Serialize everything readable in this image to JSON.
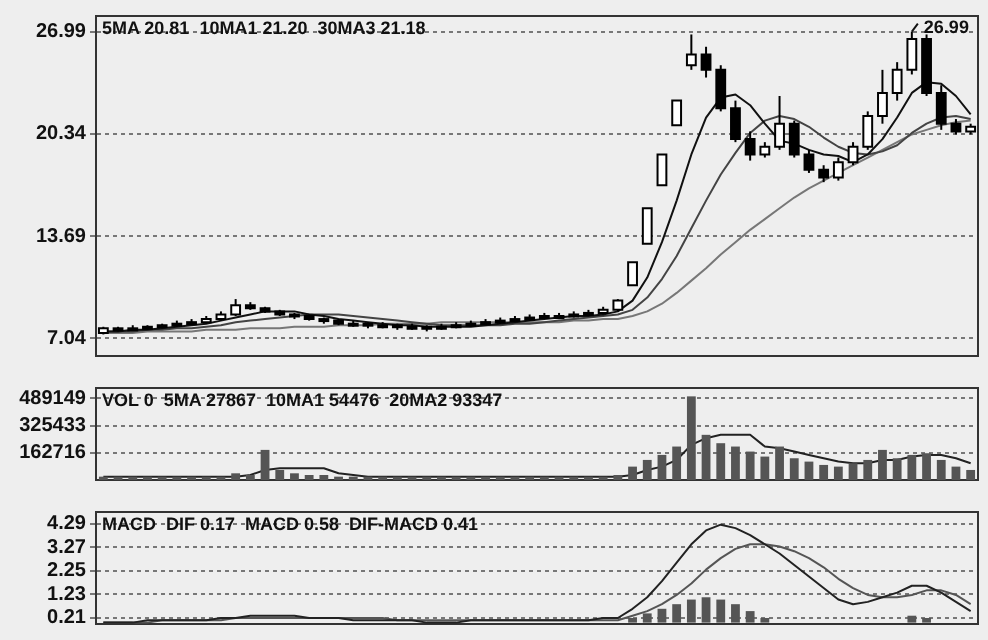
{
  "chart_data": [
    {
      "type": "candlestick",
      "categories": [
        null,
        null,
        null,
        null,
        null,
        null,
        null,
        null,
        null,
        null,
        null,
        null,
        null,
        null,
        null,
        null,
        null,
        null,
        null,
        null,
        null,
        null,
        null,
        null,
        null,
        null,
        null,
        null,
        null,
        null,
        null,
        null,
        null,
        null,
        null,
        null,
        null,
        null,
        null,
        null,
        null,
        null,
        null,
        null,
        null,
        null,
        null,
        null,
        null,
        null,
        null,
        null,
        null,
        null,
        null,
        null,
        null,
        null,
        null,
        null
      ],
      "ohlc": [
        [
          7.4,
          7.8,
          7.3,
          7.7
        ],
        [
          7.6,
          7.8,
          7.5,
          7.7
        ],
        [
          7.7,
          7.9,
          7.6,
          7.7
        ],
        [
          7.7,
          7.9,
          7.6,
          7.8
        ],
        [
          7.8,
          8.0,
          7.7,
          7.9
        ],
        [
          7.9,
          8.2,
          7.8,
          8.0
        ],
        [
          8.0,
          8.3,
          7.9,
          8.1
        ],
        [
          8.1,
          8.5,
          8.0,
          8.3
        ],
        [
          8.3,
          8.8,
          8.2,
          8.6
        ],
        [
          8.6,
          9.6,
          8.5,
          9.2
        ],
        [
          9.2,
          9.4,
          8.9,
          9.0
        ],
        [
          9.0,
          9.1,
          8.7,
          8.8
        ],
        [
          8.8,
          8.9,
          8.5,
          8.6
        ],
        [
          8.6,
          8.7,
          8.3,
          8.5
        ],
        [
          8.5,
          8.6,
          8.2,
          8.3
        ],
        [
          8.3,
          8.4,
          8.0,
          8.2
        ],
        [
          8.2,
          8.3,
          7.9,
          8.0
        ],
        [
          8.0,
          8.2,
          7.8,
          8.0
        ],
        [
          8.0,
          8.1,
          7.7,
          7.9
        ],
        [
          7.9,
          8.1,
          7.7,
          7.9
        ],
        [
          7.9,
          8.0,
          7.6,
          7.8
        ],
        [
          7.8,
          8.0,
          7.6,
          7.8
        ],
        [
          7.8,
          7.9,
          7.5,
          7.7
        ],
        [
          7.7,
          8.0,
          7.6,
          7.8
        ],
        [
          7.8,
          8.1,
          7.7,
          7.9
        ],
        [
          7.9,
          8.2,
          7.8,
          8.0
        ],
        [
          8.0,
          8.3,
          7.9,
          8.1
        ],
        [
          8.1,
          8.4,
          8.0,
          8.2
        ],
        [
          8.2,
          8.5,
          8.1,
          8.3
        ],
        [
          8.3,
          8.6,
          8.2,
          8.4
        ],
        [
          8.4,
          8.7,
          8.3,
          8.5
        ],
        [
          8.5,
          8.7,
          8.3,
          8.5
        ],
        [
          8.5,
          8.8,
          8.4,
          8.6
        ],
        [
          8.6,
          8.9,
          8.5,
          8.7
        ],
        [
          8.7,
          9.1,
          8.6,
          8.9
        ],
        [
          8.9,
          9.6,
          8.8,
          9.5
        ],
        [
          10.5,
          12.0,
          10.5,
          12.0
        ],
        [
          13.2,
          15.5,
          13.2,
          15.5
        ],
        [
          17.0,
          19.0,
          17.0,
          19.0
        ],
        [
          20.9,
          22.5,
          20.9,
          22.5
        ],
        [
          24.8,
          26.8,
          24.5,
          25.5
        ],
        [
          25.5,
          26.0,
          24.0,
          24.5
        ],
        [
          24.5,
          24.8,
          21.8,
          22.0
        ],
        [
          22.0,
          22.5,
          19.8,
          20.0
        ],
        [
          20.0,
          20.5,
          18.6,
          19.0
        ],
        [
          19.0,
          19.8,
          18.8,
          19.5
        ],
        [
          19.5,
          22.8,
          19.3,
          21.0
        ],
        [
          21.0,
          21.2,
          18.8,
          19.0
        ],
        [
          19.0,
          19.3,
          17.8,
          18.0
        ],
        [
          18.0,
          18.3,
          17.2,
          17.5
        ],
        [
          17.5,
          18.8,
          17.3,
          18.5
        ],
        [
          18.5,
          19.8,
          18.3,
          19.5
        ],
        [
          19.5,
          21.8,
          19.3,
          21.5
        ],
        [
          21.5,
          24.5,
          21.0,
          23.0
        ],
        [
          23.0,
          25.0,
          22.5,
          24.5
        ],
        [
          24.5,
          26.99,
          24.2,
          26.5
        ],
        [
          26.5,
          26.8,
          22.8,
          23.0
        ],
        [
          23.0,
          23.5,
          20.6,
          21.0
        ],
        [
          21.0,
          21.3,
          20.3,
          20.5
        ],
        [
          20.5,
          21.0,
          20.3,
          20.8
        ]
      ],
      "series": [
        {
          "type": "line",
          "color": "#111111",
          "values": [
            7.5,
            7.5,
            7.6,
            7.6,
            7.7,
            7.8,
            7.9,
            8.0,
            8.2,
            8.4,
            8.6,
            8.8,
            8.8,
            8.8,
            8.6,
            8.5,
            8.3,
            8.2,
            8.1,
            8.0,
            7.9,
            7.9,
            7.8,
            7.8,
            7.8,
            7.8,
            7.9,
            8.0,
            8.1,
            8.2,
            8.3,
            8.4,
            8.5,
            8.5,
            8.6,
            8.8,
            9.5,
            11.0,
            13.3,
            16.0,
            19.0,
            21.4,
            22.7,
            22.9,
            22.2,
            21.0,
            19.9,
            19.7,
            19.3,
            19.0,
            18.9,
            18.5,
            19.0,
            20.0,
            21.4,
            23.0,
            23.7,
            23.6,
            22.8,
            21.6
          ]
        },
        {
          "type": "line",
          "color": "#444444",
          "values": [
            7.5,
            7.5,
            7.5,
            7.6,
            7.6,
            7.7,
            7.7,
            7.8,
            7.9,
            8.1,
            8.2,
            8.3,
            8.4,
            8.5,
            8.6,
            8.6,
            8.6,
            8.5,
            8.4,
            8.3,
            8.2,
            8.1,
            8.0,
            7.9,
            7.9,
            7.9,
            7.9,
            7.9,
            8.0,
            8.0,
            8.1,
            8.2,
            8.3,
            8.4,
            8.5,
            8.6,
            8.9,
            9.7,
            10.9,
            12.4,
            14.2,
            16.0,
            17.7,
            19.1,
            20.4,
            21.2,
            21.5,
            21.3,
            20.8,
            20.1,
            19.5,
            19.1,
            19.0,
            19.2,
            19.6,
            20.4,
            21.0,
            21.4,
            21.5,
            21.3
          ]
        },
        {
          "type": "line",
          "color": "#777777",
          "values": [
            7.4,
            7.4,
            7.4,
            7.5,
            7.5,
            7.5,
            7.5,
            7.6,
            7.6,
            7.6,
            7.7,
            7.7,
            7.7,
            7.8,
            7.8,
            7.8,
            7.9,
            7.9,
            7.9,
            8.0,
            8.0,
            8.0,
            8.0,
            8.1,
            8.1,
            8.1,
            8.1,
            8.1,
            8.1,
            8.1,
            8.1,
            8.1,
            8.2,
            8.2,
            8.3,
            8.3,
            8.5,
            8.8,
            9.3,
            10.0,
            10.8,
            11.6,
            12.5,
            13.3,
            14.1,
            14.8,
            15.5,
            16.2,
            16.8,
            17.3,
            17.8,
            18.3,
            18.8,
            19.3,
            19.8,
            20.3,
            20.6,
            20.9,
            21.1,
            21.2
          ]
        }
      ],
      "annotations": [
        "5MA 20.81  10MA1 21.20  30MA3 21.18",
        "26.99"
      ],
      "ylim": [
        5.9,
        28
      ],
      "yticks": [
        7.04,
        13.69,
        20.34,
        26.99
      ],
      "grid": "y",
      "tick_labels": "y",
      "marker": "none"
    },
    {
      "type": "bar",
      "categories": [
        null,
        null,
        null,
        null,
        null,
        null,
        null,
        null,
        null,
        null,
        null,
        null,
        null,
        null,
        null,
        null,
        null,
        null,
        null,
        null,
        null,
        null,
        null,
        null,
        null,
        null,
        null,
        null,
        null,
        null,
        null,
        null,
        null,
        null,
        null,
        null,
        null,
        null,
        null,
        null,
        null,
        null,
        null,
        null,
        null,
        null,
        null,
        null,
        null,
        null,
        null,
        null,
        null,
        null,
        null,
        null,
        null,
        null,
        null,
        null
      ],
      "series": [
        {
          "type": "bar",
          "color": "#555555",
          "values": [
            20000,
            20000,
            20000,
            20000,
            20000,
            20000,
            20000,
            20000,
            20000,
            40000,
            30000,
            180000,
            60000,
            40000,
            30000,
            30000,
            20000,
            20000,
            20000,
            20000,
            20000,
            20000,
            20000,
            20000,
            20000,
            20000,
            20000,
            20000,
            20000,
            20000,
            20000,
            20000,
            20000,
            20000,
            20000,
            30000,
            80000,
            120000,
            150000,
            200000,
            500000,
            270000,
            220000,
            200000,
            170000,
            140000,
            200000,
            130000,
            110000,
            90000,
            80000,
            100000,
            120000,
            180000,
            130000,
            150000,
            160000,
            120000,
            80000,
            60000
          ]
        },
        {
          "type": "line",
          "color": "#222222",
          "values": [
            20000,
            20000,
            20000,
            20000,
            20000,
            20000,
            20000,
            20000,
            20000,
            20000,
            30000,
            60000,
            70000,
            70000,
            70000,
            70000,
            40000,
            30000,
            20000,
            20000,
            20000,
            20000,
            20000,
            20000,
            20000,
            20000,
            20000,
            20000,
            20000,
            20000,
            20000,
            20000,
            20000,
            20000,
            20000,
            20000,
            30000,
            60000,
            80000,
            120000,
            210000,
            250000,
            270000,
            270000,
            270000,
            200000,
            190000,
            170000,
            150000,
            130000,
            110000,
            100000,
            100000,
            120000,
            120000,
            140000,
            150000,
            150000,
            130000,
            100000
          ]
        }
      ],
      "annotations": [
        "VOL 0  5MA 27867  10MA1 54476  20MA2 93347"
      ],
      "ylim": [
        0,
        550000
      ],
      "yticks": [
        162716,
        325433,
        489149
      ],
      "grid": "y",
      "tick_labels": "y",
      "marker": "none"
    },
    {
      "type": "line",
      "categories": [
        null,
        null,
        null,
        null,
        null,
        null,
        null,
        null,
        null,
        null,
        null,
        null,
        null,
        null,
        null,
        null,
        null,
        null,
        null,
        null,
        null,
        null,
        null,
        null,
        null,
        null,
        null,
        null,
        null,
        null,
        null,
        null,
        null,
        null,
        null,
        null,
        null,
        null,
        null,
        null,
        null,
        null,
        null,
        null,
        null,
        null,
        null,
        null,
        null,
        null,
        null,
        null,
        null,
        null,
        null,
        null,
        null,
        null,
        null,
        null
      ],
      "series": [
        {
          "type": "line",
          "color": "#222222",
          "values": [
            0.0,
            0.0,
            0.0,
            0.1,
            0.1,
            0.1,
            0.1,
            0.1,
            0.2,
            0.2,
            0.3,
            0.3,
            0.3,
            0.3,
            0.2,
            0.2,
            0.2,
            0.1,
            0.1,
            0.1,
            0.1,
            0.1,
            0.0,
            0.0,
            0.0,
            0.1,
            0.1,
            0.1,
            0.1,
            0.1,
            0.1,
            0.1,
            0.1,
            0.1,
            0.2,
            0.2,
            0.6,
            1.1,
            1.8,
            2.6,
            3.4,
            4.0,
            4.25,
            4.1,
            3.8,
            3.4,
            3.0,
            2.5,
            2.0,
            1.5,
            1.0,
            0.8,
            0.9,
            1.1,
            1.3,
            1.6,
            1.6,
            1.3,
            0.9,
            0.5
          ]
        },
        {
          "type": "line",
          "color": "#555555",
          "values": [
            0.0,
            0.0,
            0.0,
            0.0,
            0.1,
            0.1,
            0.1,
            0.1,
            0.1,
            0.2,
            0.2,
            0.2,
            0.2,
            0.2,
            0.2,
            0.2,
            0.2,
            0.2,
            0.2,
            0.2,
            0.1,
            0.1,
            0.1,
            0.1,
            0.1,
            0.1,
            0.1,
            0.1,
            0.1,
            0.1,
            0.1,
            0.1,
            0.1,
            0.1,
            0.1,
            0.1,
            0.3,
            0.5,
            0.8,
            1.2,
            1.7,
            2.3,
            2.8,
            3.2,
            3.4,
            3.4,
            3.3,
            3.1,
            2.8,
            2.4,
            1.9,
            1.5,
            1.2,
            1.1,
            1.1,
            1.2,
            1.4,
            1.4,
            1.2,
            0.8
          ]
        },
        {
          "type": "bar",
          "color": "#555555",
          "values": [
            null,
            null,
            null,
            null,
            null,
            null,
            null,
            null,
            null,
            null,
            null,
            null,
            null,
            null,
            null,
            null,
            null,
            null,
            null,
            null,
            null,
            null,
            null,
            null,
            null,
            null,
            null,
            null,
            null,
            null,
            null,
            null,
            null,
            null,
            null,
            null,
            0.2,
            0.4,
            0.6,
            0.8,
            1.0,
            1.1,
            1.0,
            0.8,
            0.5,
            0.2,
            null,
            null,
            null,
            null,
            null,
            null,
            null,
            null,
            null,
            0.3,
            0.2,
            null,
            null,
            null
          ]
        }
      ],
      "annotations": [
        "MACD  DIF 0.17  MACD 0.58  DIF-MACD 0.41"
      ],
      "ylim": [
        -0.06,
        4.8
      ],
      "yticks": [
        0.21,
        1.23,
        2.25,
        3.27,
        4.29
      ],
      "grid": "y",
      "tick_labels": "y",
      "marker": "none"
    }
  ]
}
